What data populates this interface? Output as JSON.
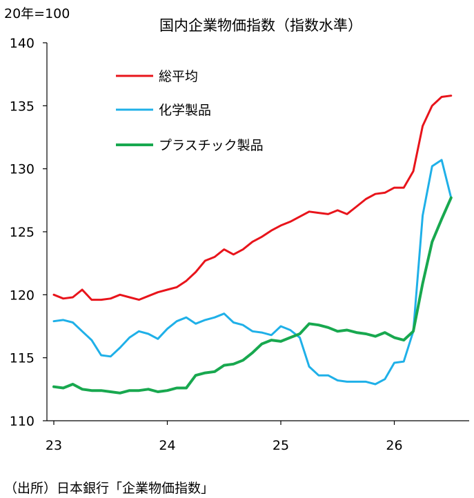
{
  "chart_data": {
    "type": "line",
    "title": "国内企業物価指数（指数水準）",
    "unit_label": "20年=100",
    "source": "（出所）日本銀行「企業物価指数」",
    "ylim": [
      110,
      140
    ],
    "y_ticks": [
      "110",
      "115",
      "120",
      "125",
      "130",
      "135",
      "140"
    ],
    "x_ticks": [
      "23",
      "24",
      "25",
      "26"
    ],
    "x_range": [
      2023.0,
      2026.5
    ],
    "grid": false,
    "legend_position": "upper-left",
    "series": [
      {
        "name": "総平均",
        "color": "#e8141b",
        "x": [
          2023.0,
          2023.083,
          2023.167,
          2023.25,
          2023.333,
          2023.417,
          2023.5,
          2023.583,
          2023.667,
          2023.75,
          2023.833,
          2023.917,
          2024.0,
          2024.083,
          2024.167,
          2024.25,
          2024.333,
          2024.417,
          2024.5,
          2024.583,
          2024.667,
          2024.75,
          2024.833,
          2024.917,
          2025.0,
          2025.083,
          2025.167,
          2025.25,
          2025.333,
          2025.417,
          2025.5,
          2025.583,
          2025.667,
          2025.75,
          2025.833,
          2025.917,
          2026.0,
          2026.083,
          2026.167,
          2026.25,
          2026.333,
          2026.417,
          2026.5
        ],
        "values": [
          120.0,
          119.7,
          119.8,
          120.4,
          119.6,
          119.6,
          119.7,
          120.0,
          119.8,
          119.6,
          119.9,
          120.2,
          120.4,
          120.6,
          121.1,
          121.8,
          122.7,
          123.0,
          123.6,
          123.2,
          123.6,
          124.2,
          124.6,
          125.1,
          125.5,
          125.8,
          126.2,
          126.6,
          126.5,
          126.4,
          126.7,
          126.4,
          127.0,
          127.6,
          128.0,
          128.1,
          128.5,
          128.5,
          129.8,
          133.4,
          135.0,
          135.7,
          135.8
        ]
      },
      {
        "name": "化学製品",
        "color": "#1fb0e8",
        "x": [
          2023.0,
          2023.083,
          2023.167,
          2023.25,
          2023.333,
          2023.417,
          2023.5,
          2023.583,
          2023.667,
          2023.75,
          2023.833,
          2023.917,
          2024.0,
          2024.083,
          2024.167,
          2024.25,
          2024.333,
          2024.417,
          2024.5,
          2024.583,
          2024.667,
          2024.75,
          2024.833,
          2024.917,
          2025.0,
          2025.083,
          2025.167,
          2025.25,
          2025.333,
          2025.417,
          2025.5,
          2025.583,
          2025.667,
          2025.75,
          2025.833,
          2025.917,
          2026.0,
          2026.083,
          2026.167,
          2026.25,
          2026.333,
          2026.417,
          2026.5
        ],
        "values": [
          117.9,
          118.0,
          117.8,
          117.1,
          116.4,
          115.2,
          115.1,
          115.8,
          116.6,
          117.1,
          116.9,
          116.5,
          117.3,
          117.9,
          118.2,
          117.7,
          118.0,
          118.2,
          118.5,
          117.8,
          117.6,
          117.1,
          117.0,
          116.8,
          117.5,
          117.2,
          116.6,
          114.3,
          113.6,
          113.6,
          113.2,
          113.1,
          113.1,
          113.1,
          112.9,
          113.3,
          114.6,
          114.7,
          117.1,
          126.3,
          130.2,
          130.7,
          127.7
        ]
      },
      {
        "name": "プラスチック製品",
        "color": "#18a84f",
        "x": [
          2023.0,
          2023.083,
          2023.167,
          2023.25,
          2023.333,
          2023.417,
          2023.5,
          2023.583,
          2023.667,
          2023.75,
          2023.833,
          2023.917,
          2024.0,
          2024.083,
          2024.167,
          2024.25,
          2024.333,
          2024.417,
          2024.5,
          2024.583,
          2024.667,
          2024.75,
          2024.833,
          2024.917,
          2025.0,
          2025.083,
          2025.167,
          2025.25,
          2025.333,
          2025.417,
          2025.5,
          2025.583,
          2025.667,
          2025.75,
          2025.833,
          2025.917,
          2026.0,
          2026.083,
          2026.167,
          2026.25,
          2026.333,
          2026.417,
          2026.5
        ],
        "values": [
          112.7,
          112.6,
          112.9,
          112.5,
          112.4,
          112.4,
          112.3,
          112.2,
          112.4,
          112.4,
          112.5,
          112.3,
          112.4,
          112.6,
          112.6,
          113.6,
          113.8,
          113.9,
          114.4,
          114.5,
          114.8,
          115.4,
          116.1,
          116.4,
          116.3,
          116.6,
          116.9,
          117.7,
          117.6,
          117.4,
          117.1,
          117.2,
          117.0,
          116.9,
          116.7,
          117.0,
          116.6,
          116.4,
          117.1,
          120.9,
          124.2,
          126.0,
          127.7
        ]
      }
    ]
  }
}
